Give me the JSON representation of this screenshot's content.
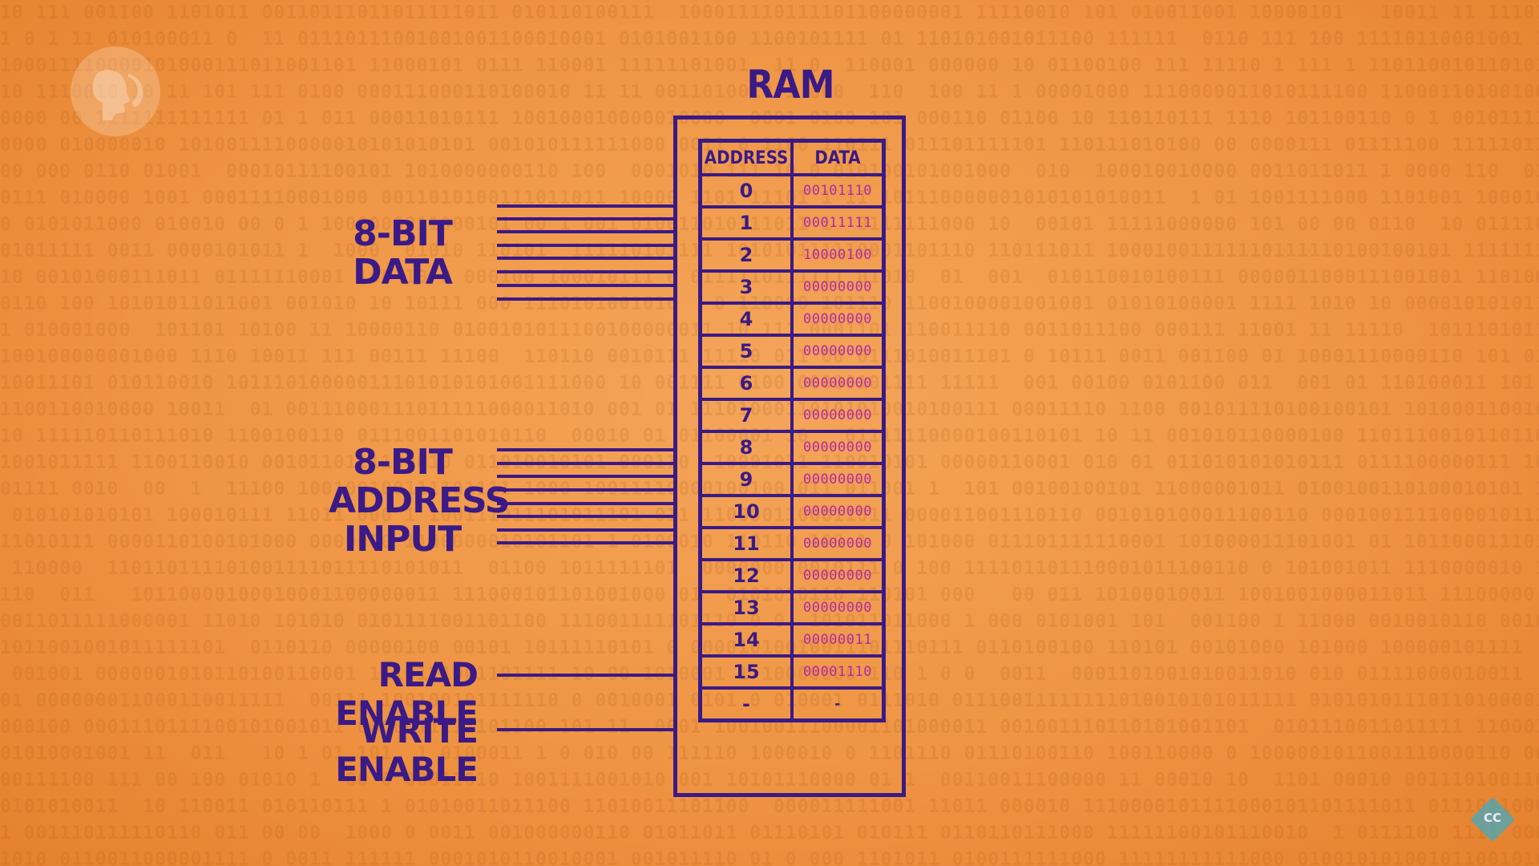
{
  "diagram": {
    "title": "RAM",
    "table": {
      "headers": {
        "address": "ADDRESS",
        "data": "DATA"
      },
      "rows": [
        {
          "address": "0",
          "data": "00101110"
        },
        {
          "address": "1",
          "data": "00011111"
        },
        {
          "address": "2",
          "data": "10000100"
        },
        {
          "address": "3",
          "data": "00000000"
        },
        {
          "address": "4",
          "data": "00000000"
        },
        {
          "address": "5",
          "data": "00000000"
        },
        {
          "address": "6",
          "data": "00000000"
        },
        {
          "address": "7",
          "data": "00000000"
        },
        {
          "address": "8",
          "data": "00000000"
        },
        {
          "address": "9",
          "data": "00000000"
        },
        {
          "address": "10",
          "data": "00000000"
        },
        {
          "address": "11",
          "data": "00000000"
        },
        {
          "address": "12",
          "data": "00000000"
        },
        {
          "address": "13",
          "data": "00000000"
        },
        {
          "address": "14",
          "data": "00000011"
        },
        {
          "address": "15",
          "data": "00001110"
        },
        {
          "address": "-",
          "data": "-"
        }
      ]
    },
    "inputs": {
      "data_label_line1": "8-BIT",
      "data_label_line2": "DATA",
      "address_label_line1": "8-BIT",
      "address_label_line2": "ADDRESS",
      "address_label_line3": "INPUT",
      "read_enable": "READ ENABLE",
      "write_enable": "WRITE ENABLE"
    }
  },
  "badges": {
    "corner": "CC"
  },
  "colors": {
    "ink": "#3a1a86",
    "data_text": "#b02aa8",
    "background": "#ef9544"
  }
}
